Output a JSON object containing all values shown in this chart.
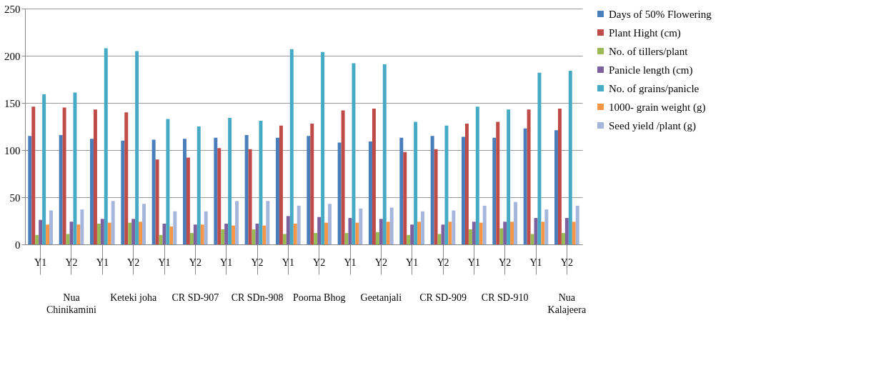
{
  "chart_data": {
    "type": "bar",
    "categories": [
      "Y1",
      "Y2",
      "Y1",
      "Y2",
      "Y1",
      "Y2",
      "Y1",
      "Y2",
      "Y1",
      "Y2",
      "Y1",
      "Y2",
      "Y1",
      "Y2",
      "Y1",
      "Y2",
      "Y1",
      "Y2"
    ],
    "annotations": [
      "Nua Chinikamini",
      "Keteki joha",
      "CR SD-907",
      "CR SDn-908",
      "Poorna Bhog",
      "Geetanjali",
      "CR SD-909",
      "CR SD-910",
      "Nua Kalajeera"
    ],
    "series": [
      {
        "name": "Days of 50% Flowering",
        "color": "#4a7ebb",
        "values": [
          115,
          116,
          112,
          110,
          111,
          112,
          113,
          116,
          113,
          115,
          108,
          109,
          113,
          115,
          114,
          113,
          123,
          121
        ]
      },
      {
        "name": "Plant Hight (cm)",
        "color": "#be4b48",
        "values": [
          146,
          145,
          143,
          140,
          90,
          92,
          102,
          101,
          126,
          128,
          142,
          144,
          98,
          101,
          128,
          130,
          143,
          144
        ]
      },
      {
        "name": "No. of tillers/plant",
        "color": "#98b954",
        "values": [
          10,
          11,
          22,
          23,
          10,
          12,
          16,
          16,
          11,
          12,
          12,
          13,
          10,
          11,
          16,
          17,
          11,
          12
        ]
      },
      {
        "name": "Panicle length (cm)",
        "color": "#7d60a0",
        "values": [
          26,
          24,
          27,
          27,
          22,
          21,
          22,
          22,
          30,
          29,
          28,
          27,
          21,
          21,
          24,
          24,
          28,
          28
        ]
      },
      {
        "name": "No. of grains/panicle",
        "color": "#46aac5",
        "values": [
          159,
          161,
          208,
          205,
          133,
          125,
          134,
          131,
          207,
          204,
          192,
          191,
          130,
          126,
          146,
          143,
          182,
          184
        ]
      },
      {
        "name": "1000- grain weight (g)",
        "color": "#f79646",
        "values": [
          21,
          21,
          23,
          24,
          19,
          21,
          20,
          20,
          22,
          23,
          23,
          24,
          24,
          24,
          23,
          24,
          24,
          24
        ]
      },
      {
        "name": "Seed yield /plant (g)",
        "color": "#a5b6dd",
        "values": [
          36,
          37,
          46,
          43,
          35,
          35,
          46,
          46,
          41,
          43,
          38,
          39,
          35,
          36,
          41,
          45,
          37,
          41
        ]
      }
    ],
    "ylim": [
      0,
      250
    ],
    "yticks": [
      0,
      50,
      100,
      150,
      200,
      250
    ],
    "grid": "y",
    "legend": "right"
  }
}
